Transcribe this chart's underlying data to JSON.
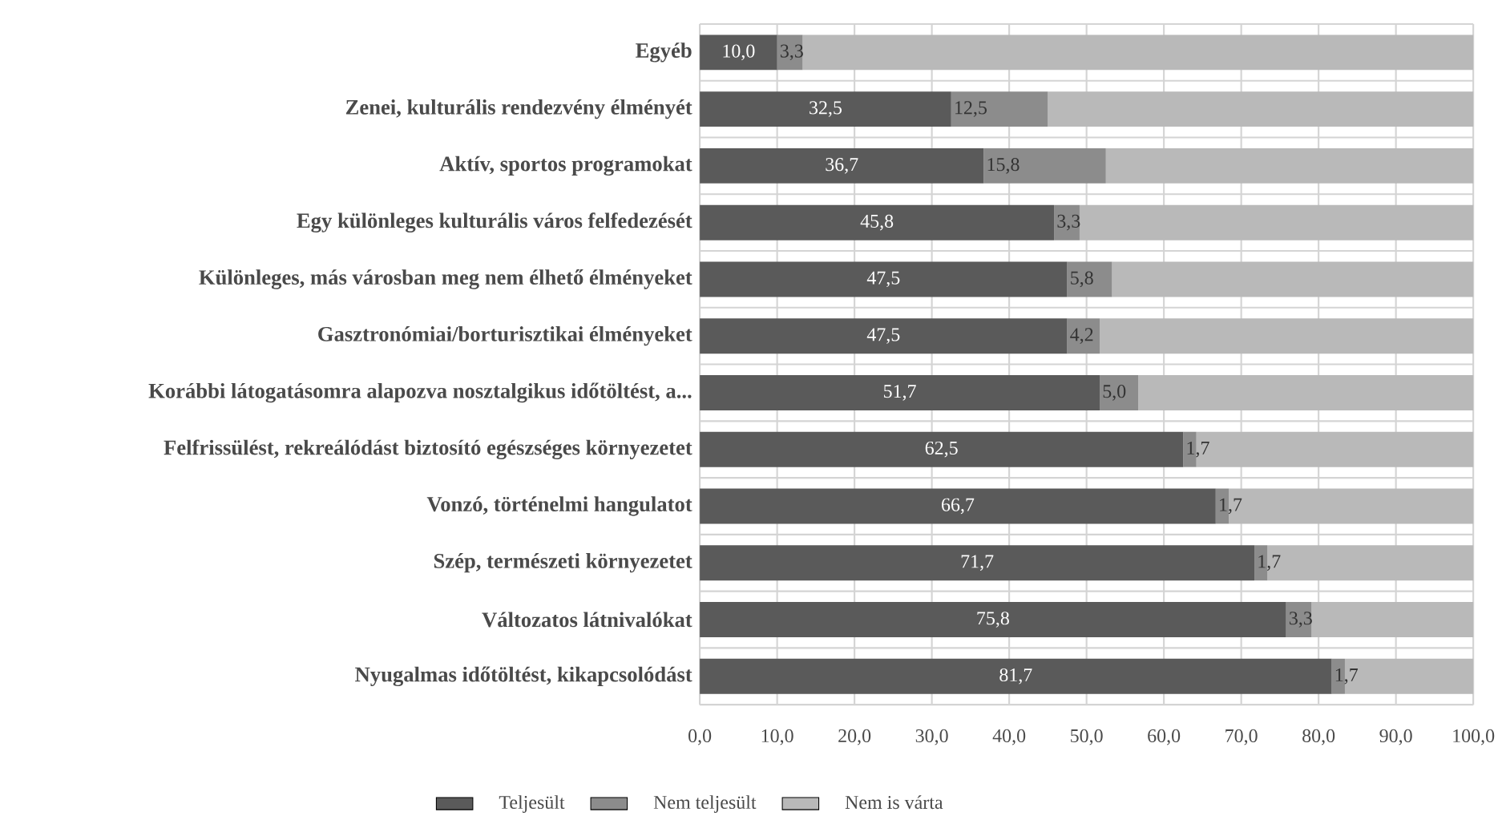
{
  "chart_data": {
    "type": "bar",
    "orientation": "horizontal",
    "stacked": true,
    "grid": true,
    "legend": "bottom",
    "categories": [
      "Egyéb",
      "Zenei, kulturális rendezvény élményét",
      "Aktív, sportos programokat",
      "Egy különleges kulturális város felfedezését",
      "Különleges, más városban meg nem élhető élményeket",
      "Gasztronómiai/borturisztikai élményeket",
      "Korábbi látogatásomra alapozva nosztalgikus időtöltést, a...",
      "Felfrissülést, rekreálódást biztosító egészséges környezetet",
      "Vonzó, történelmi hangulatot",
      "Szép, természeti környezetet",
      "Változatos látnivalókat",
      "Nyugalmas időtöltést, kikapcsolódást"
    ],
    "series": [
      {
        "name": "Teljesült",
        "color": "#5a5a5a",
        "values": [
          10.0,
          32.5,
          36.7,
          45.8,
          47.5,
          47.5,
          51.7,
          62.5,
          66.7,
          71.7,
          75.8,
          81.7
        ],
        "value_labels": [
          "10,0",
          "32,5",
          "36,7",
          "45,8",
          "47,5",
          "47,5",
          "51,7",
          "62,5",
          "66,7",
          "71,7",
          "75,8",
          "81,7"
        ]
      },
      {
        "name": "Nem teljesült",
        "color": "#8c8c8c",
        "values": [
          3.3,
          12.5,
          15.8,
          3.3,
          5.8,
          4.2,
          5.0,
          1.7,
          1.7,
          1.7,
          3.3,
          1.7
        ],
        "value_labels": [
          "3,3",
          "12,5",
          "15,8",
          "3,3",
          "5,8",
          "4,2",
          "5,0",
          "1,7",
          "1,7",
          "1,7",
          "3,3",
          "1,7"
        ]
      },
      {
        "name": "Nem is várta",
        "color": "#b9b9b9",
        "values": [
          86.7,
          55.0,
          47.5,
          50.9,
          46.7,
          48.3,
          43.3,
          35.8,
          31.6,
          26.6,
          20.9,
          16.6
        ]
      }
    ],
    "xlim": [
      0,
      100
    ],
    "xticks": [
      {
        "value": 0,
        "label": "0,0"
      },
      {
        "value": 10,
        "label": "10,0"
      },
      {
        "value": 20,
        "label": "20,0"
      },
      {
        "value": 30,
        "label": "30,0"
      },
      {
        "value": 40,
        "label": "40,0"
      },
      {
        "value": 50,
        "label": "50,0"
      },
      {
        "value": 60,
        "label": "60,0"
      },
      {
        "value": 70,
        "label": "70,0"
      },
      {
        "value": 80,
        "label": "80,0"
      },
      {
        "value": 90,
        "label": "90,0"
      },
      {
        "value": 100,
        "label": "100,0"
      }
    ]
  }
}
